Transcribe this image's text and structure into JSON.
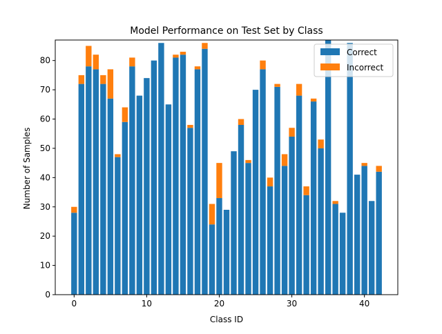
{
  "chart_data": {
    "type": "bar",
    "stacked": true,
    "title": "Model Performance on Test Set by Class",
    "xlabel": "Class ID",
    "ylabel": "Number of Samples",
    "xlim": [
      -2.6,
      44.6
    ],
    "ylim": [
      0,
      87
    ],
    "xticks": [
      0,
      10,
      20,
      30,
      40
    ],
    "yticks": [
      0,
      10,
      20,
      30,
      40,
      50,
      60,
      70,
      80
    ],
    "legend_position": "top-right",
    "grid": false,
    "x": [
      0,
      1,
      2,
      3,
      4,
      5,
      6,
      7,
      8,
      9,
      10,
      11,
      12,
      13,
      14,
      15,
      16,
      17,
      18,
      19,
      20,
      21,
      22,
      23,
      24,
      25,
      26,
      27,
      28,
      29,
      30,
      31,
      32,
      33,
      34,
      35,
      36,
      37,
      38,
      39,
      40,
      41,
      42
    ],
    "series": [
      {
        "name": "Correct",
        "color": "#1f77b4",
        "values": [
          28,
          72,
          78,
          77,
          72,
          67,
          47,
          59,
          78,
          68,
          74,
          80,
          86,
          65,
          81,
          82,
          57,
          77,
          84,
          24,
          33,
          29,
          49,
          58,
          45,
          70,
          77,
          37,
          71,
          44,
          54,
          68,
          34,
          66,
          50,
          87,
          31,
          28,
          86,
          41,
          44,
          32,
          42
        ]
      },
      {
        "name": "Incorrect",
        "color": "#ff7f0e",
        "values": [
          2,
          3,
          7,
          5,
          3,
          10,
          1,
          5,
          3,
          0,
          0,
          0,
          0,
          0,
          1,
          1,
          1,
          1,
          2,
          7,
          12,
          0,
          0,
          2,
          1,
          0,
          3,
          3,
          1,
          4,
          3,
          4,
          3,
          1,
          3,
          0,
          1,
          0,
          0,
          0,
          1,
          0,
          2
        ]
      }
    ]
  }
}
